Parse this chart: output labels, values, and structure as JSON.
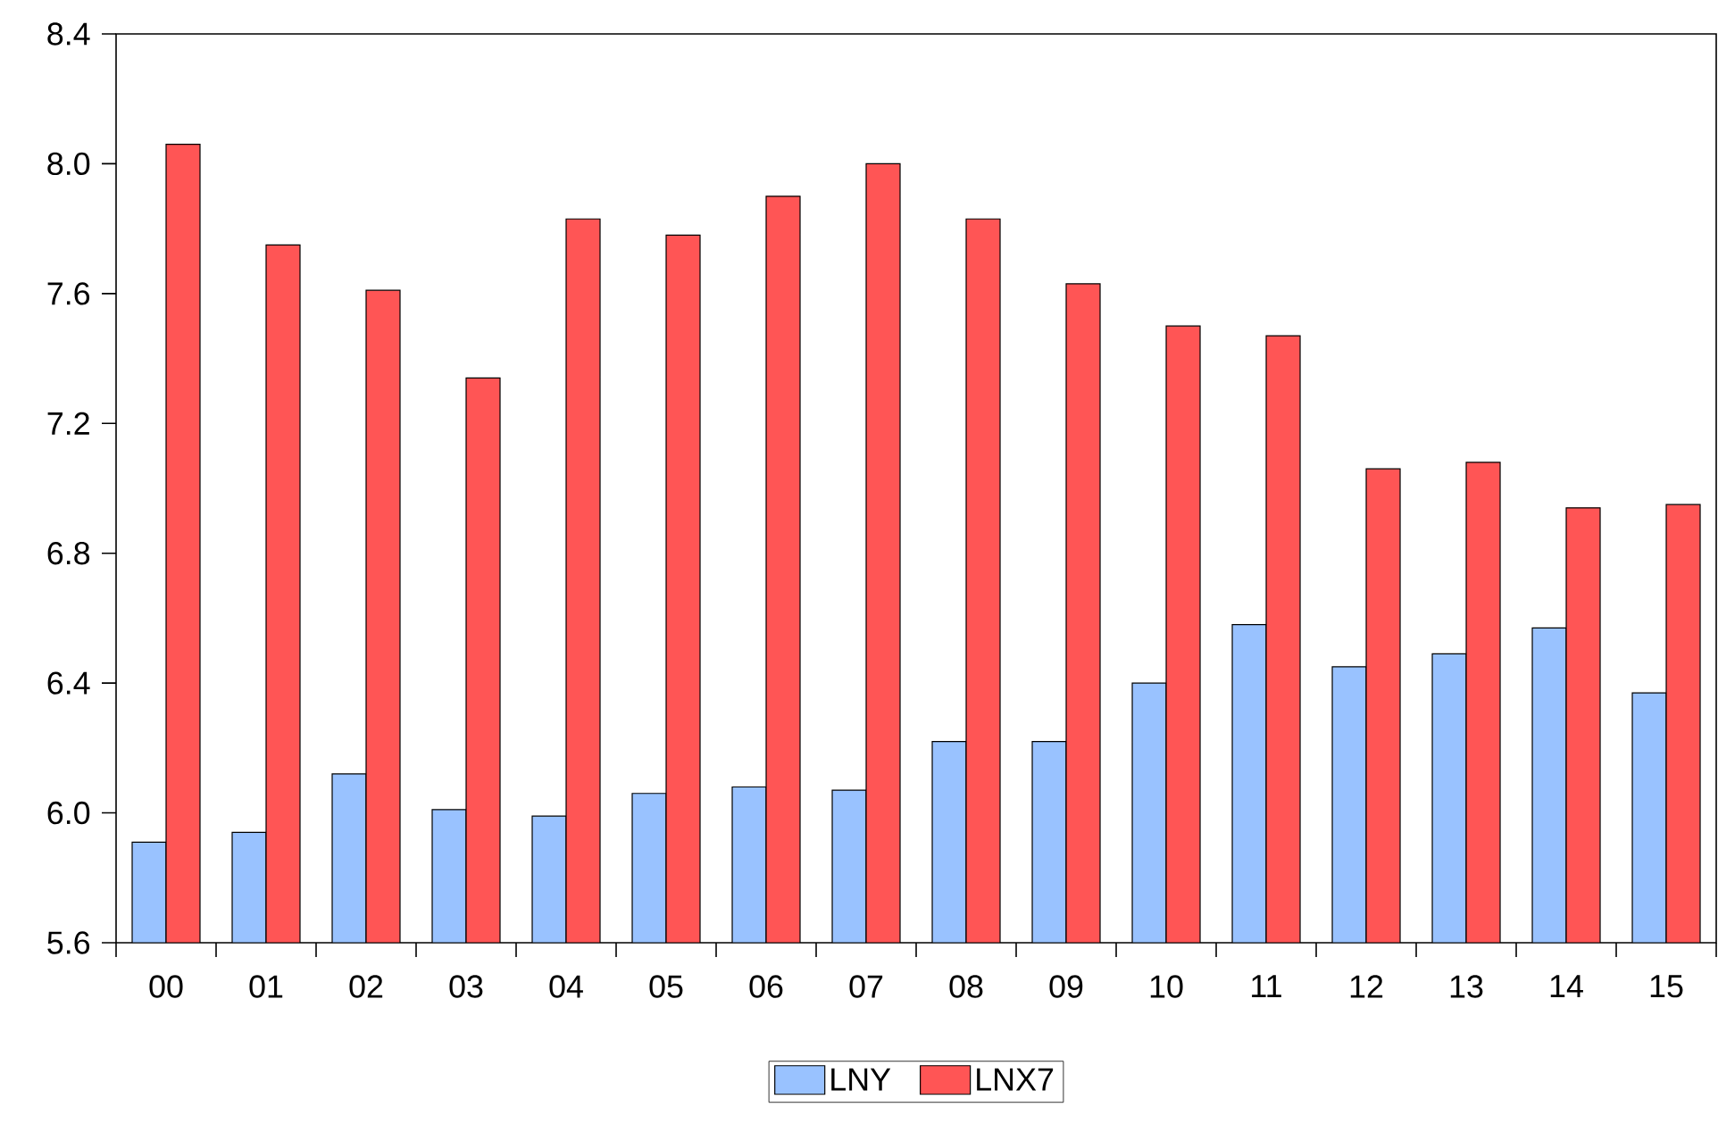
{
  "chart_data": {
    "type": "bar",
    "categories": [
      "00",
      "01",
      "02",
      "03",
      "04",
      "05",
      "06",
      "07",
      "08",
      "09",
      "10",
      "11",
      "12",
      "13",
      "14",
      "15"
    ],
    "series": [
      {
        "name": "LNY",
        "color": "#99c2ff",
        "values": [
          5.91,
          5.94,
          6.12,
          6.01,
          5.99,
          6.06,
          6.08,
          6.07,
          6.22,
          6.22,
          6.4,
          6.58,
          6.45,
          6.49,
          6.57,
          6.37
        ]
      },
      {
        "name": "LNX7",
        "color": "#ff5555",
        "values": [
          8.06,
          7.75,
          7.61,
          7.34,
          7.83,
          7.78,
          7.9,
          8.0,
          7.83,
          7.63,
          7.5,
          7.47,
          7.06,
          7.08,
          6.94,
          6.95
        ]
      }
    ],
    "ylim": [
      5.6,
      8.4
    ],
    "yticks": [
      5.6,
      {
        "value": 6,
        "label": "6.0"
      },
      6.4,
      6.8,
      7.2,
      7.6,
      {
        "value": 8,
        "label": "8.0"
      },
      8.4
    ],
    "grid": false,
    "legend": "bottom"
  }
}
